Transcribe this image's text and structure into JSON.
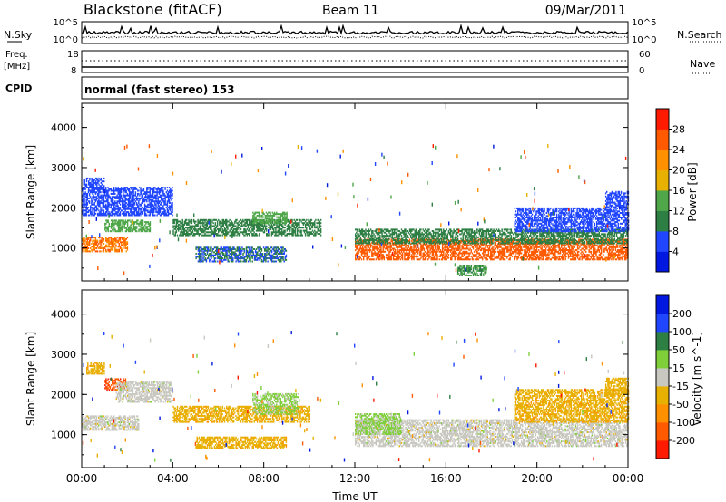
{
  "header": {
    "station": "Blackstone (fitACF)",
    "beam": "Beam 11",
    "date": "09/Mar/2011"
  },
  "noise_panel": {
    "left_label": "N.Sky",
    "right_label": "N.Search",
    "tick_top": "10^5",
    "tick_bottom": "10^0"
  },
  "freq_panel": {
    "left_label_1": "Freq.",
    "left_label_2": "[MHz]",
    "right_label": "Nave",
    "left_ticks": [
      "18",
      "8"
    ],
    "right_ticks": [
      "60",
      "0"
    ]
  },
  "cpid": {
    "label": "CPID",
    "text": "normal (fast stereo) 153"
  },
  "chart_data": [
    {
      "type": "heatmap",
      "title": "",
      "xlabel": "",
      "ylabel": "Slant Range [km]",
      "x_ticks": [
        "00:00",
        "04:00",
        "08:00",
        "12:00",
        "16:00",
        "20:00",
        "00:00"
      ],
      "xlim_hours": [
        0,
        24
      ],
      "y_ticks": [
        "1000",
        "2000",
        "3000",
        "4000"
      ],
      "ylim": [
        180,
        4600
      ],
      "colorbar": {
        "label": "Power [dB]",
        "ticks": [
          "4",
          "8",
          "12",
          "16",
          "20",
          "24",
          "28"
        ],
        "range": [
          0,
          32
        ],
        "colors": [
          "#0018e0",
          "#2046ff",
          "#2e7f44",
          "#4fa74a",
          "#e8b000",
          "#ff9000",
          "#ff5a00",
          "#ff1a00"
        ]
      },
      "echo_regions": [
        {
          "t0": 0.0,
          "t1": 2.0,
          "r0": 900,
          "r1": 1250,
          "value": 24
        },
        {
          "t0": 1.0,
          "t1": 3.0,
          "r0": 1400,
          "r1": 1700,
          "value": 14
        },
        {
          "t0": 0.0,
          "t1": 4.0,
          "r0": 1800,
          "r1": 2500,
          "value": 6
        },
        {
          "t0": 0.1,
          "t1": 1.0,
          "r0": 2450,
          "r1": 2750,
          "value": 6
        },
        {
          "t0": 4.0,
          "t1": 10.5,
          "r0": 1300,
          "r1": 1700,
          "value": 10
        },
        {
          "t0": 5.0,
          "t1": 9.0,
          "r0": 650,
          "r1": 1000,
          "value": 8
        },
        {
          "t0": 7.5,
          "t1": 9.0,
          "r0": 1600,
          "r1": 1900,
          "value": 14
        },
        {
          "t0": 12.0,
          "t1": 24.0,
          "r0": 700,
          "r1": 1200,
          "value": 26
        },
        {
          "t0": 12.0,
          "t1": 24.0,
          "r0": 1100,
          "r1": 1450,
          "value": 10
        },
        {
          "t0": 19.0,
          "t1": 24.0,
          "r0": 1400,
          "r1": 2000,
          "value": 6
        },
        {
          "t0": 23.0,
          "t1": 24.0,
          "r0": 2000,
          "r1": 2400,
          "value": 6
        },
        {
          "t0": 16.5,
          "t1": 17.8,
          "r0": 300,
          "r1": 550,
          "value": 12
        }
      ]
    },
    {
      "type": "heatmap",
      "title": "",
      "xlabel": "Time UT",
      "ylabel": "Slant Range [km]",
      "x_ticks": [
        "00:00",
        "04:00",
        "08:00",
        "12:00",
        "16:00",
        "20:00",
        "00:00"
      ],
      "xlim_hours": [
        0,
        24
      ],
      "y_ticks": [
        "1000",
        "2000",
        "3000",
        "4000"
      ],
      "ylim": [
        180,
        4600
      ],
      "colorbar": {
        "label": "Velocity [m s^-1]",
        "ticks": [
          "200",
          "100",
          "50",
          "15",
          "-15",
          "-50",
          "-100",
          "-200"
        ],
        "range": [
          -250,
          250
        ],
        "colors": [
          "#ff1a00",
          "#ff5a00",
          "#ff9000",
          "#e8b000",
          "#c8c8c0",
          "#7fcf3a",
          "#2e7f44",
          "#2046ff",
          "#0018e0"
        ]
      },
      "echo_regions": [
        {
          "t0": 0.0,
          "t1": 2.5,
          "r0": 1100,
          "r1": 1450,
          "value": 0
        },
        {
          "t0": 1.0,
          "t1": 2.0,
          "r0": 2100,
          "r1": 2400,
          "value": -180
        },
        {
          "t0": 0.2,
          "t1": 1.0,
          "r0": 2500,
          "r1": 2800,
          "value": -60
        },
        {
          "t0": 1.5,
          "t1": 4.0,
          "r0": 1800,
          "r1": 2300,
          "value": 0
        },
        {
          "t0": 4.0,
          "t1": 10.0,
          "r0": 1300,
          "r1": 1700,
          "value": -60
        },
        {
          "t0": 5.0,
          "t1": 9.0,
          "r0": 650,
          "r1": 950,
          "value": -60
        },
        {
          "t0": 7.5,
          "t1": 9.5,
          "r0": 1500,
          "r1": 2000,
          "value": 40
        },
        {
          "t0": 12.0,
          "t1": 24.0,
          "r0": 700,
          "r1": 1350,
          "value": 0
        },
        {
          "t0": 12.0,
          "t1": 14.0,
          "r0": 1000,
          "r1": 1500,
          "value": 40
        },
        {
          "t0": 19.0,
          "t1": 24.0,
          "r0": 1300,
          "r1": 2100,
          "value": -60
        },
        {
          "t0": 23.0,
          "t1": 24.0,
          "r0": 2000,
          "r1": 2400,
          "value": -60
        }
      ]
    }
  ]
}
